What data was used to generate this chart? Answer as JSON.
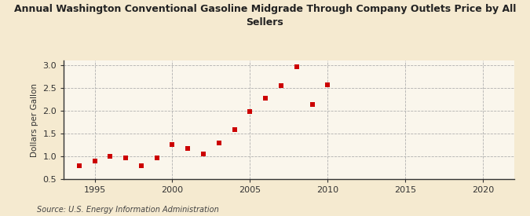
{
  "title": "Annual Washington Conventional Gasoline Midgrade Through Company Outlets Price by All\nSellers",
  "ylabel": "Dollars per Gallon",
  "source": "Source: U.S. Energy Information Administration",
  "background_color": "#f5ead0",
  "plot_bg_color": "#faf6ec",
  "marker_color": "#cc0000",
  "marker": "s",
  "marker_size": 4,
  "xlim": [
    1993,
    2022
  ],
  "ylim": [
    0.5,
    3.1
  ],
  "xticks": [
    1995,
    2000,
    2005,
    2010,
    2015,
    2020
  ],
  "yticks": [
    0.5,
    1.0,
    1.5,
    2.0,
    2.5,
    3.0
  ],
  "data": {
    "years": [
      1994,
      1995,
      1996,
      1997,
      1998,
      1999,
      2000,
      2001,
      2002,
      2003,
      2004,
      2005,
      2006,
      2007,
      2008,
      2009,
      2010
    ],
    "values": [
      0.79,
      0.9,
      1.0,
      0.97,
      0.79,
      0.97,
      1.26,
      1.18,
      1.05,
      1.3,
      1.59,
      1.99,
      2.27,
      2.55,
      2.96,
      2.14,
      2.57
    ]
  }
}
